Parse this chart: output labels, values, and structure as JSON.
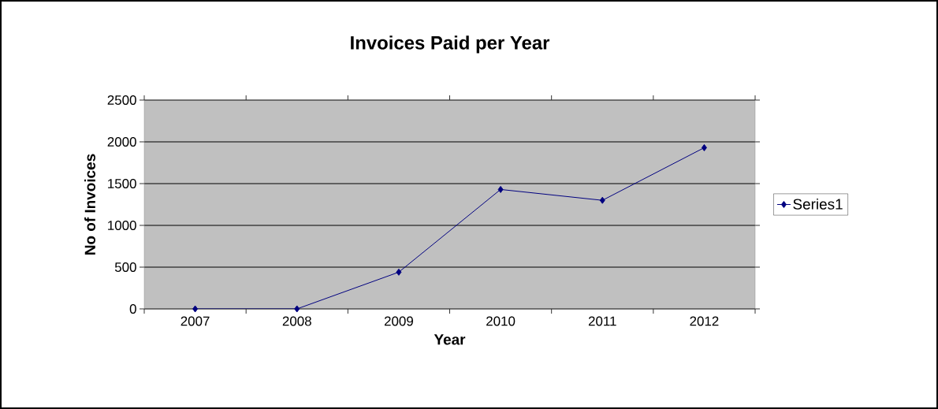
{
  "chart_data": {
    "type": "line",
    "title": "Invoices Paid per Year",
    "xlabel": "Year",
    "ylabel": "No of Invoices",
    "categories": [
      "2007",
      "2008",
      "2009",
      "2010",
      "2011",
      "2012"
    ],
    "series": [
      {
        "name": "Series1",
        "color": "#000080",
        "values": [
          0,
          0,
          440,
          1430,
          1300,
          1930
        ]
      }
    ],
    "ylim": [
      0,
      2500
    ],
    "yticks": [
      0,
      500,
      1000,
      1500,
      2000,
      2500
    ],
    "grid": "y",
    "legend": "right",
    "marker": "diamond",
    "line_style": "solid"
  }
}
